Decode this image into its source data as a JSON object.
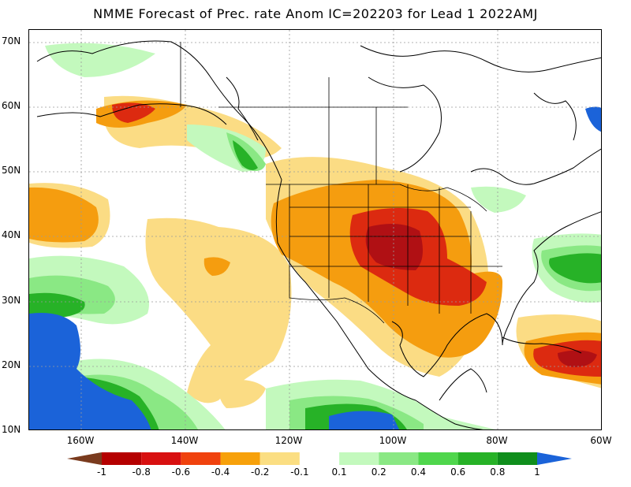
{
  "title": "NMME Forecast of Prec. rate Anom IC=202203 for Lead 1 2022AMJ",
  "map": {
    "lat_labels": [
      "70N",
      "60N",
      "50N",
      "40N",
      "30N",
      "20N",
      "10N"
    ],
    "lon_labels": [
      "160W",
      "140W",
      "120W",
      "100W",
      "80W",
      "60W"
    ],
    "lat_range": [
      10,
      72
    ],
    "lon_range": [
      -170,
      -60
    ]
  },
  "colorbar": {
    "labels": [
      "-1",
      "-0.8",
      "-0.6",
      "-0.4",
      "-0.2",
      "-0.1",
      "0.1",
      "0.2",
      "0.4",
      "0.6",
      "0.8",
      "1"
    ],
    "colors": [
      "#7a3b1e",
      "#b50000",
      "#d81010",
      "#f0420e",
      "#f7a10b",
      "#fbde82",
      "#ffffff",
      "#c3f9bd",
      "#8ae884",
      "#4fd64c",
      "#27b227",
      "#0f8e1c",
      "#1b63d9"
    ]
  },
  "palette": {
    "dry_strong": "#c01418",
    "dry_red": "#dc2a10",
    "dry_orange": "#f59d0f",
    "dry_light": "#fbdc84",
    "wet_light": "#c3f9bd",
    "wet_mid": "#8ae884",
    "wet_green": "#45c842",
    "wet_dark": "#109a25",
    "wet_blue": "#1b63d9"
  }
}
